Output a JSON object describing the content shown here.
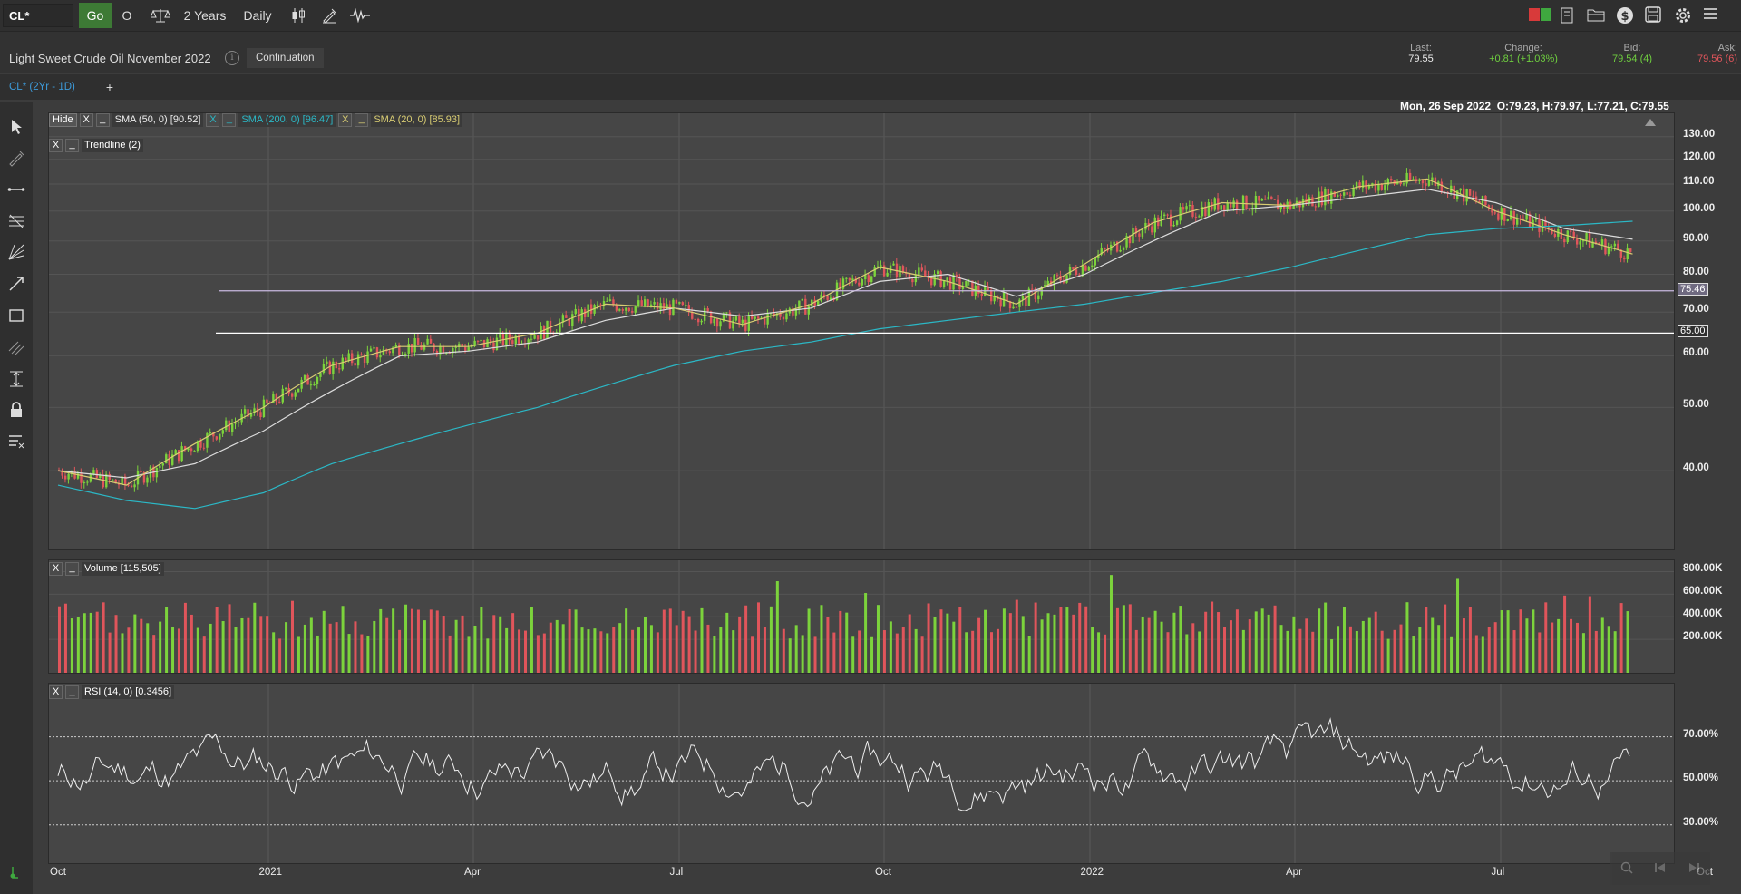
{
  "toolbar": {
    "symbol": "CL*",
    "go_label": "Go",
    "o_label": "O",
    "range_label": "2 Years",
    "interval_label": "Daily"
  },
  "instrument": {
    "title": "Light Sweet Crude Oil November 2022",
    "info_glyph": "i",
    "continuation_label": "Continuation"
  },
  "quote": {
    "last_label": "Last:",
    "last_value": "79.55",
    "change_label": "Change:",
    "change_value": "+0.81 (+1.03%)",
    "bid_label": "Bid:",
    "bid_value": "79.54 (4)",
    "ask_label": "Ask:",
    "ask_value": "79.56 (6)"
  },
  "tabs": {
    "chart_tab": "CL* (2Yr - 1D)",
    "add_glyph": "+"
  },
  "ohlc_readout": "Mon, 26 Sep 2022  O:79.23, H:79.97, L:77.21, C:79.55",
  "legend": {
    "hide_label": "Hide",
    "close_glyph": "X",
    "minimize_glyph": "_",
    "sma50": "SMA (50, 0)",
    "sma50_value": "[90.52]",
    "sma200": "SMA (200, 0)",
    "sma200_value": "[96.47]",
    "sma20": "SMA (20, 0)",
    "sma20_value": "[85.93]",
    "trendline": "Trendline",
    "trendline_value": "(2)",
    "volume": "Volume",
    "volume_value": "[115,505]",
    "rsi": "RSI (14, 0)",
    "rsi_value": "[0.3456]"
  },
  "price_axis": [
    "130.00",
    "120.00",
    "110.00",
    "100.00",
    "90.00",
    "80.00",
    "70.00",
    "60.00",
    "50.00",
    "40.00"
  ],
  "trendline_tags": [
    "75.46",
    "65.00"
  ],
  "volume_axis": [
    "800.00K",
    "600.00K",
    "400.00K",
    "200.00K"
  ],
  "rsi_axis": [
    "70.00%",
    "50.00%",
    "30.00%"
  ],
  "date_axis": [
    "Oct",
    "2021",
    "Apr",
    "Jul",
    "Oct",
    "2022",
    "Apr",
    "Jul",
    "Oct"
  ],
  "colors": {
    "up": "#7cd33c",
    "down": "#e0555b",
    "sma50": "#dcdcdc",
    "sma200": "#2bb8c6",
    "sma20": "#d9cd73",
    "ask": "#e0555b",
    "change": "#6fcf3f"
  },
  "chart_data": {
    "type": "line",
    "title": "Light Sweet Crude Oil November 2022",
    "x": [
      "2020-10",
      "2020-11",
      "2020-12",
      "2021-01",
      "2021-02",
      "2021-03",
      "2021-04",
      "2021-05",
      "2021-06",
      "2021-07",
      "2021-08",
      "2021-09",
      "2021-10",
      "2021-11",
      "2021-12",
      "2022-01",
      "2022-02",
      "2022-03",
      "2022-04",
      "2022-05",
      "2022-06",
      "2022-07",
      "2022-08",
      "2022-09"
    ],
    "series": [
      {
        "name": "SMA (50, 0)",
        "values": [
          40,
          39,
          41,
          46,
          53,
          60,
          61,
          63,
          68,
          71,
          69,
          71,
          78,
          80,
          74,
          80,
          90,
          100,
          102,
          105,
          108,
          103,
          94,
          90.52
        ]
      },
      {
        "name": "SMA (200, 0)",
        "values": [
          38,
          36,
          35,
          37,
          41,
          44,
          47,
          50,
          54,
          58,
          61,
          63,
          66,
          68,
          70,
          72,
          75,
          78,
          82,
          87,
          92,
          94,
          95,
          96.47
        ]
      },
      {
        "name": "SMA (20, 0)",
        "values": [
          40,
          38,
          44,
          50,
          58,
          62,
          62,
          65,
          72,
          71,
          67,
          72,
          82,
          78,
          72,
          83,
          96,
          103,
          102,
          109,
          112,
          100,
          92,
          85.93
        ]
      }
    ],
    "horizontal_lines": [
      75.46,
      65.0
    ],
    "ylim": [
      30,
      135
    ],
    "rsi_levels": [
      70,
      50,
      30
    ]
  }
}
